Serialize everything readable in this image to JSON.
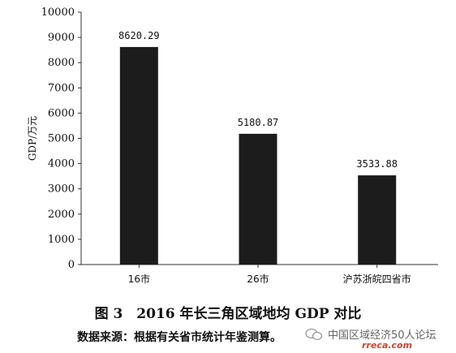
{
  "chart_data": {
    "type": "bar",
    "categories": [
      "16市",
      "26市",
      "沪苏浙皖四省市"
    ],
    "values": [
      8620.29,
      5180.87,
      3533.88
    ],
    "data_labels": [
      "8620.29",
      "5180.87",
      "3533.88"
    ],
    "ylabel": "GDP/万元",
    "xlabel": "",
    "ylim": [
      0,
      10000
    ],
    "yticks": [
      "0",
      "1000",
      "2000",
      "3000",
      "4000",
      "5000",
      "6000",
      "7000",
      "8000",
      "9000",
      "10000"
    ],
    "grid": false,
    "bar_color": "#1c1c1c"
  },
  "caption": "图 3　2016 年长三角区域地均 GDP 对比",
  "source": "数据来源：根据有关省市统计年鉴测算。",
  "watermark": {
    "line1": "中国区域经济50人论坛",
    "line2": "rreca.com"
  }
}
